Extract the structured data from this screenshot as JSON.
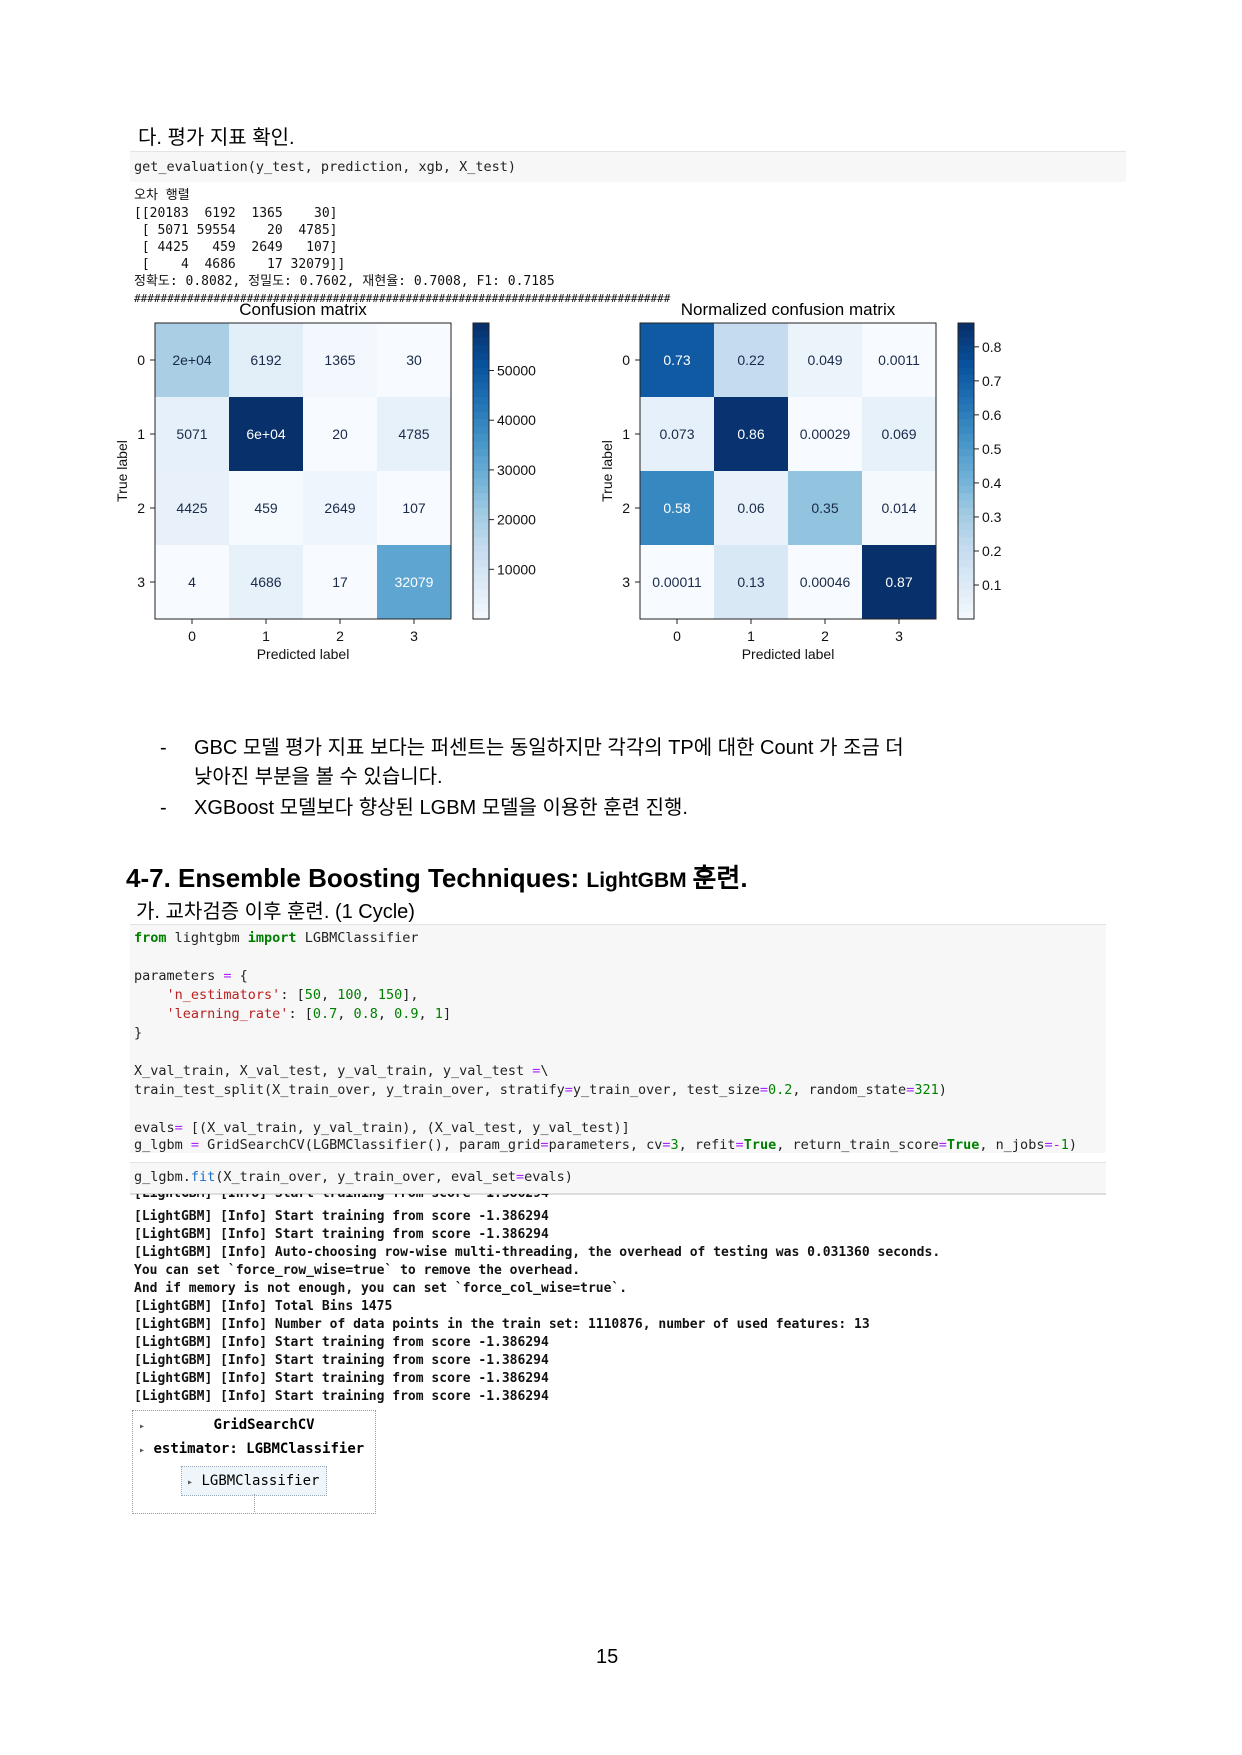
{
  "section_da": "다. 평가 지표 확인.",
  "eval_code": "get_evaluation(y_test, prediction, xgb, X_test)",
  "eval_output": {
    "matrix_title": "오차 행렬",
    "rows": [
      "[[20183  6192  1365    30]",
      " [ 5071 59554    20  4785]",
      " [ 4425   459  2649   107]",
      " [    4  4686    17 32079]]"
    ],
    "metrics": "정확도: 0.8082, 정밀도: 0.7602, 재현율: 0.7008, F1: 0.7185",
    "separator": "#################################################################################"
  },
  "chart_data": [
    {
      "type": "heatmap",
      "title": "Confusion matrix",
      "xlabel": "Predicted label",
      "ylabel": "True label",
      "x_ticks": [
        "0",
        "1",
        "2",
        "3"
      ],
      "y_ticks": [
        "0",
        "1",
        "2",
        "3"
      ],
      "values": [
        [
          20183,
          6192,
          1365,
          30
        ],
        [
          5071,
          59554,
          20,
          4785
        ],
        [
          4425,
          459,
          2649,
          107
        ],
        [
          4,
          4686,
          17,
          32079
        ]
      ],
      "labels": [
        [
          "2e+04",
          "6192",
          "1365",
          "30"
        ],
        [
          "5071",
          "6e+04",
          "20",
          "4785"
        ],
        [
          "4425",
          "459",
          "2649",
          "107"
        ],
        [
          "4",
          "4686",
          "17",
          "32079"
        ]
      ],
      "colorbar_ticks": [
        "10000",
        "20000",
        "30000",
        "40000",
        "50000"
      ],
      "colorbar_values": [
        10000,
        20000,
        30000,
        40000,
        50000
      ],
      "vmin": 4,
      "vmax": 59554,
      "colormap": "Blues"
    },
    {
      "type": "heatmap",
      "title": "Normalized confusion matrix",
      "xlabel": "Predicted label",
      "ylabel": "True label",
      "x_ticks": [
        "0",
        "1",
        "2",
        "3"
      ],
      "y_ticks": [
        "0",
        "1",
        "2",
        "3"
      ],
      "values": [
        [
          0.73,
          0.22,
          0.049,
          0.0011
        ],
        [
          0.073,
          0.86,
          0.00029,
          0.069
        ],
        [
          0.58,
          0.06,
          0.35,
          0.014
        ],
        [
          0.00011,
          0.13,
          0.00046,
          0.87
        ]
      ],
      "labels": [
        [
          "0.73",
          "0.22",
          "0.049",
          "0.0011"
        ],
        [
          "0.073",
          "0.86",
          "0.00029",
          "0.069"
        ],
        [
          "0.58",
          "0.06",
          "0.35",
          "0.014"
        ],
        [
          "0.00011",
          "0.13",
          "0.00046",
          "0.87"
        ]
      ],
      "colorbar_ticks": [
        "0.1",
        "0.2",
        "0.3",
        "0.4",
        "0.5",
        "0.6",
        "0.7",
        "0.8"
      ],
      "colorbar_values": [
        0.1,
        0.2,
        0.3,
        0.4,
        0.5,
        0.6,
        0.7,
        0.8
      ],
      "vmin": 0.00011,
      "vmax": 0.87,
      "colormap": "Blues"
    }
  ],
  "bullets": [
    {
      "dash": "-",
      "line1": "GBC 모델 평가 지표 보다는 퍼센트는 동일하지만 각각의 TP에 대한 Count 가 조금 더",
      "line2": "낮아진 부분을 볼 수 있습니다."
    },
    {
      "dash": "-",
      "line1": "XGBoost 모델보다 향상된 LGBM 모델을 이용한 훈련 진행.",
      "line2": ""
    }
  ],
  "heading": {
    "prefix": "4-7. Ensemble Boosting Techniques: ",
    "small": "LightGBM ",
    "suffix": "훈련."
  },
  "section_ga": "가. 교차검증 이후 훈련. (1 Cycle)",
  "output_log": [
    "[LightGBM] [Info] Start training from score -1.386294",
    "[LightGBM] [Info] Start training from score -1.386294",
    "[LightGBM] [Info] Auto-choosing row-wise multi-threading, the overhead of testing was 0.031360 seconds.",
    "You can set `force_row_wise=true` to remove the overhead.",
    "And if memory is not enough, you can set `force_col_wise=true`.",
    "[LightGBM] [Info] Total Bins 1475",
    "[LightGBM] [Info] Number of data points in the train set: 1110876, number of used features: 13",
    "[LightGBM] [Info] Start training from score -1.386294",
    "[LightGBM] [Info] Start training from score -1.386294",
    "[LightGBM] [Info] Start training from score -1.386294",
    "[LightGBM] [Info] Start training from score -1.386294"
  ],
  "widget": {
    "arrow": "▸",
    "row1": "GridSearchCV",
    "row2": "estimator: LGBMClassifier",
    "row3": "LGBMClassifier"
  },
  "page_number": "15"
}
